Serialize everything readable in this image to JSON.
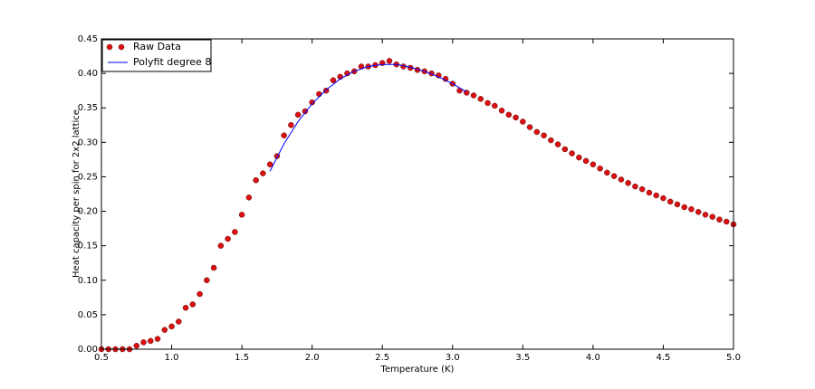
{
  "chart_data": {
    "type": "scatter",
    "xlabel": "Temperature (K)",
    "ylabel": "Heat capacity per spin for 2x2 lattice",
    "xlim": [
      0.5,
      5.0
    ],
    "ylim": [
      0,
      0.45
    ],
    "xticks": [
      0.5,
      {
        "value": 1,
        "label": "1.0"
      },
      1.5,
      {
        "value": 2,
        "label": "2.0"
      },
      2.5,
      {
        "value": 3,
        "label": "3.0"
      },
      3.5,
      {
        "value": 4,
        "label": "4.0"
      },
      4.5,
      {
        "value": 5,
        "label": "5.0"
      }
    ],
    "yticks": [
      {
        "value": 0,
        "label": "0.00"
      },
      0.05,
      {
        "value": 0.1,
        "label": "0.10"
      },
      0.15,
      {
        "value": 0.2,
        "label": "0.20"
      },
      0.25,
      {
        "value": 0.3,
        "label": "0.30"
      },
      0.35,
      {
        "value": 0.4,
        "label": "0.40"
      },
      0.45
    ],
    "legend": "upper left",
    "series": [
      {
        "name": "Raw Data",
        "kind": "scatter",
        "color": "#dd1111",
        "x": [
          0.5,
          0.55,
          0.6,
          0.65,
          0.7,
          0.75,
          0.8,
          0.85,
          0.9,
          0.95,
          1.0,
          1.05,
          1.1,
          1.15,
          1.2,
          1.25,
          1.3,
          1.35,
          1.4,
          1.45,
          1.5,
          1.55,
          1.6,
          1.65,
          1.7,
          1.75,
          1.8,
          1.85,
          1.9,
          1.95,
          2.0,
          2.05,
          2.1,
          2.15,
          2.2,
          2.25,
          2.3,
          2.35,
          2.4,
          2.45,
          2.5,
          2.55,
          2.6,
          2.65,
          2.7,
          2.75,
          2.8,
          2.85,
          2.9,
          2.95,
          3.0,
          3.05,
          3.1,
          3.15,
          3.2,
          3.25,
          3.3,
          3.35,
          3.4,
          3.45,
          3.5,
          3.55,
          3.6,
          3.65,
          3.7,
          3.75,
          3.8,
          3.85,
          3.9,
          3.95,
          4.0,
          4.05,
          4.1,
          4.15,
          4.2,
          4.25,
          4.3,
          4.35,
          4.4,
          4.45,
          4.5,
          4.55,
          4.6,
          4.65,
          4.7,
          4.75,
          4.8,
          4.85,
          4.9,
          4.95,
          5.0
        ],
        "values": [
          0,
          0,
          0,
          0,
          0,
          0.005,
          0.01,
          0.012,
          0.015,
          0.028,
          0.033,
          0.04,
          0.06,
          0.065,
          0.08,
          0.1,
          0.118,
          0.15,
          0.16,
          0.17,
          0.195,
          0.22,
          0.245,
          0.255,
          0.268,
          0.28,
          0.31,
          0.325,
          0.34,
          0.345,
          0.358,
          0.37,
          0.375,
          0.39,
          0.395,
          0.4,
          0.403,
          0.41,
          0.41,
          0.412,
          0.415,
          0.418,
          0.413,
          0.41,
          0.408,
          0.405,
          0.403,
          0.4,
          0.397,
          0.392,
          0.385,
          0.375,
          0.372,
          0.368,
          0.363,
          0.357,
          0.353,
          0.346,
          0.34,
          0.336,
          0.33,
          0.322,
          0.315,
          0.31,
          0.303,
          0.297,
          0.29,
          0.284,
          0.278,
          0.273,
          0.268,
          0.262,
          0.256,
          0.251,
          0.246,
          0.241,
          0.236,
          0.232,
          0.227,
          0.223,
          0.219,
          0.214,
          0.21,
          0.206,
          0.203,
          0.199,
          0.195,
          0.192,
          0.188,
          0.185,
          0.181
        ]
      },
      {
        "name": "Polyfit degree 8",
        "kind": "line",
        "color": "#0000ff",
        "x": [
          1.7,
          1.8,
          1.9,
          2.0,
          2.1,
          2.2,
          2.3,
          2.4,
          2.5,
          2.6,
          2.7,
          2.8,
          2.9,
          3.0,
          3.1
        ],
        "values": [
          0.258,
          0.298,
          0.33,
          0.356,
          0.376,
          0.392,
          0.403,
          0.41,
          0.413,
          0.413,
          0.409,
          0.403,
          0.395,
          0.385,
          0.373
        ]
      }
    ]
  }
}
